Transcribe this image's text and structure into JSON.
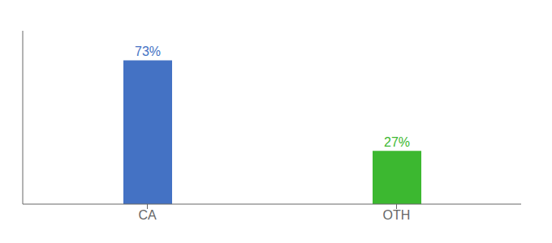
{
  "chart_data": {
    "type": "bar",
    "categories": [
      "CA",
      "OTH"
    ],
    "values": [
      73,
      27
    ],
    "value_labels": [
      "73%",
      "27%"
    ],
    "data_labels": true,
    "colors": [
      "#4472c4",
      "#3cb830"
    ],
    "ylim": [
      0,
      88
    ],
    "tick_labels": "x"
  }
}
